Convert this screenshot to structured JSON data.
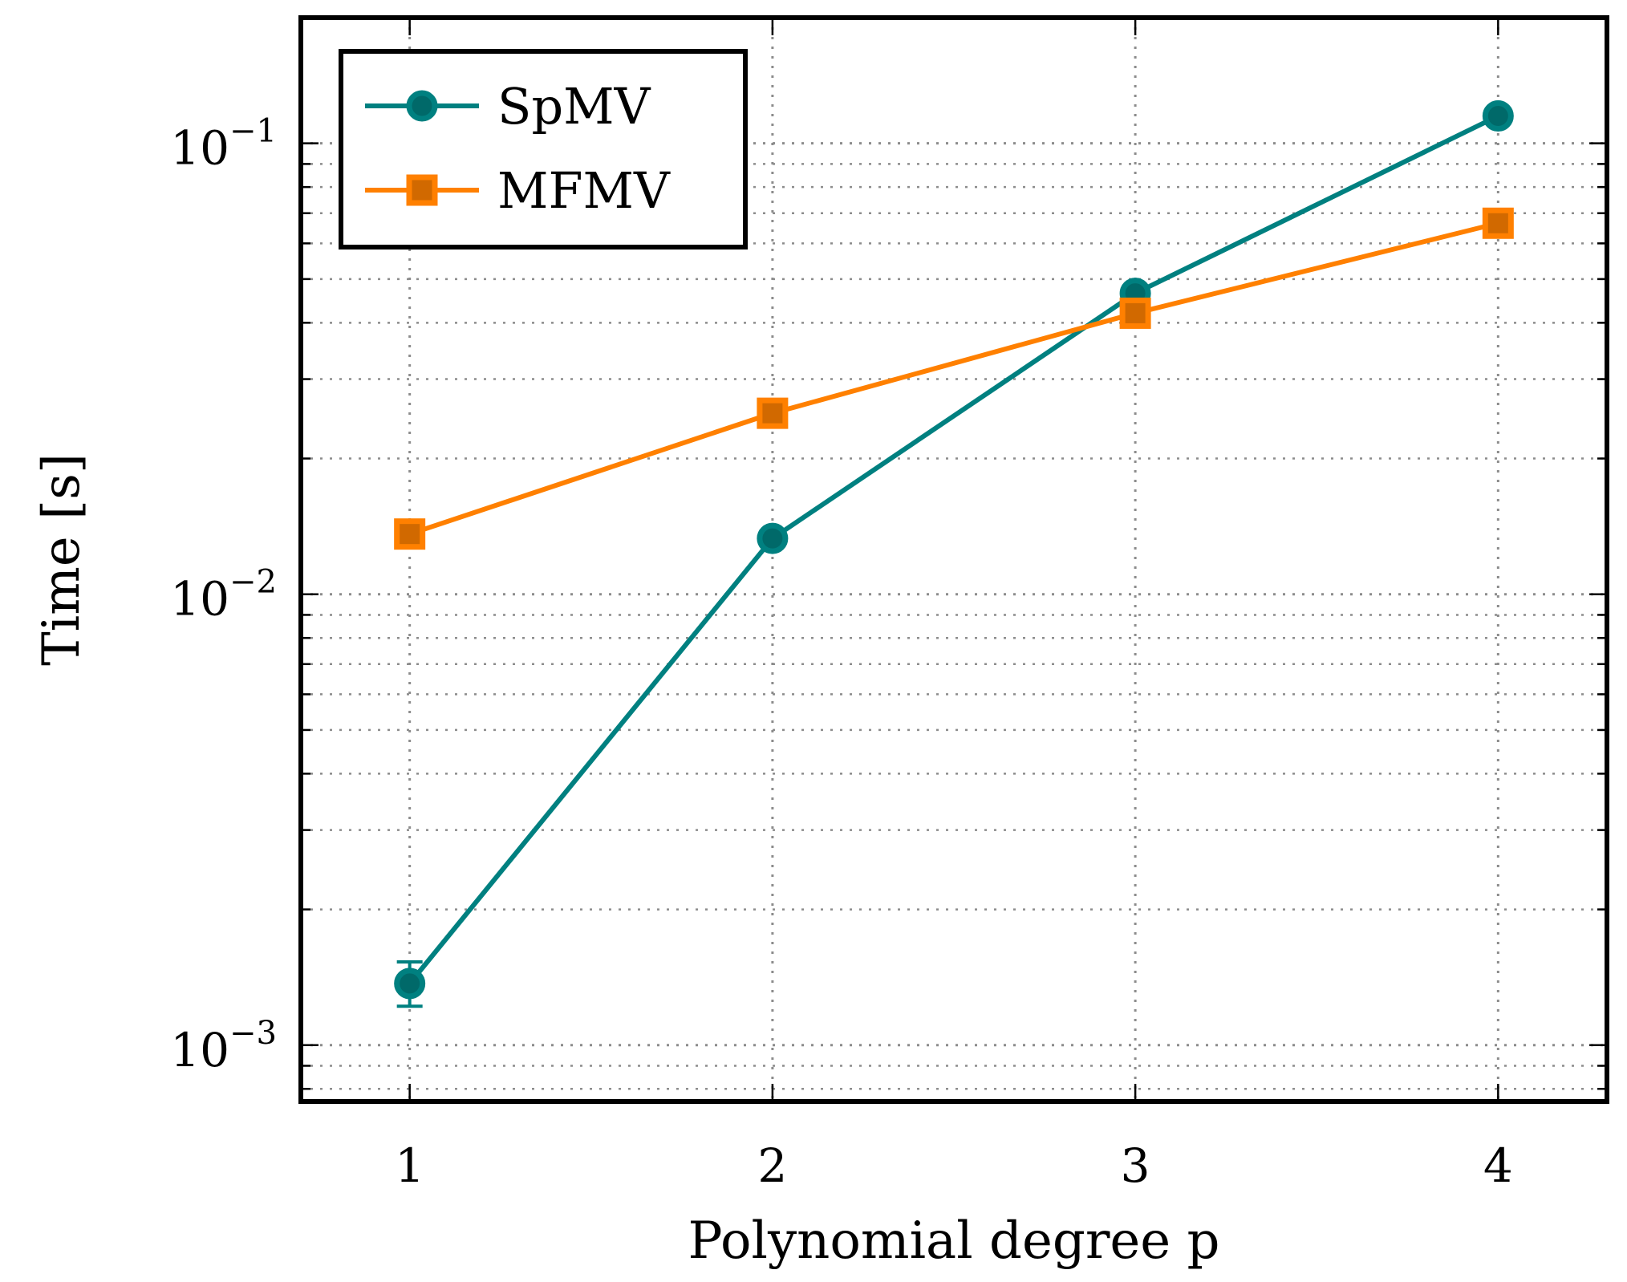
{
  "chart_data": {
    "type": "line",
    "title": "",
    "xlabel": "Polynomial degree p",
    "ylabel": "Time [s]",
    "x": [
      1,
      2,
      3,
      4
    ],
    "x_ticks": [
      1,
      2,
      3,
      4
    ],
    "xlim": [
      0.7,
      4.3
    ],
    "yscale": "log",
    "ylim": [
      0.00075,
      0.19
    ],
    "y_ticks": [
      {
        "value": 0.001,
        "base": "10",
        "exp": "−3"
      },
      {
        "value": 0.01,
        "base": "10",
        "exp": "−2"
      },
      {
        "value": 0.1,
        "base": "10",
        "exp": "−1"
      }
    ],
    "grid": true,
    "legend_position": "top-left",
    "series": [
      {
        "name": "SpMV",
        "color": "#008080",
        "marker": "circle",
        "values": [
          0.00137,
          0.0133,
          0.0465,
          0.115
        ],
        "error_low": [
          0.00122,
          null,
          null,
          null
        ],
        "error_high": [
          0.00153,
          null,
          null,
          null
        ]
      },
      {
        "name": "MFMV",
        "color": "#ff8000",
        "marker": "square",
        "values": [
          0.0136,
          0.0252,
          0.042,
          0.0665
        ]
      }
    ]
  }
}
